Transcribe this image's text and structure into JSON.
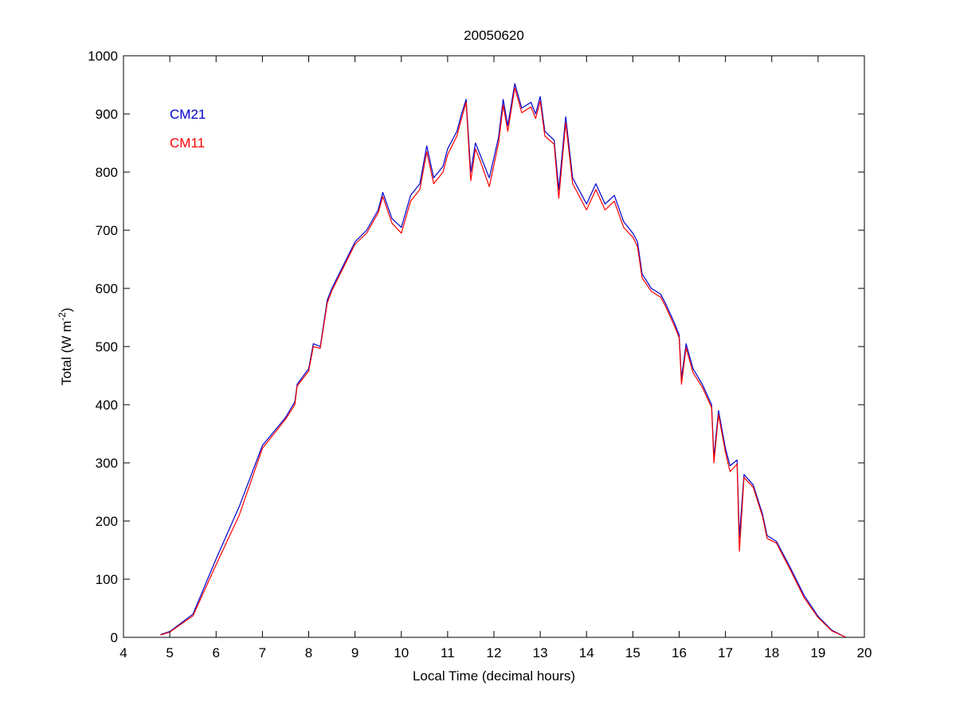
{
  "chart_data": {
    "type": "line",
    "title": "20050620",
    "xlabel": "Local Time (decimal hours)",
    "ylabel_main": "Total (W m",
    "ylabel_sup": "-2",
    "ylabel_end": ")",
    "xlim": [
      4,
      20
    ],
    "ylim": [
      0,
      1000
    ],
    "xticks": [
      "4",
      "5",
      "6",
      "7",
      "8",
      "9",
      "10",
      "11",
      "12",
      "13",
      "14",
      "15",
      "16",
      "17",
      "18",
      "19",
      "20"
    ],
    "yticks": [
      "0",
      "100",
      "200",
      "300",
      "400",
      "500",
      "600",
      "700",
      "800",
      "900",
      "1000"
    ],
    "grid": false,
    "legend_placement": "top-left",
    "series": [
      {
        "name": "CM21",
        "color": "#0000cc",
        "x": [
          4.8,
          5.0,
          5.5,
          6.0,
          6.5,
          7.0,
          7.5,
          7.7,
          7.75,
          8.0,
          8.1,
          8.25,
          8.4,
          8.5,
          8.75,
          9.0,
          9.25,
          9.5,
          9.6,
          9.8,
          10.0,
          10.2,
          10.4,
          10.55,
          10.7,
          10.9,
          11.0,
          11.2,
          11.3,
          11.4,
          11.5,
          11.6,
          11.7,
          11.9,
          12.1,
          12.2,
          12.3,
          12.45,
          12.6,
          12.8,
          12.9,
          13.0,
          13.1,
          13.3,
          13.4,
          13.55,
          13.7,
          13.9,
          14.0,
          14.2,
          14.4,
          14.6,
          14.8,
          15.0,
          15.1,
          15.2,
          15.4,
          15.6,
          15.7,
          15.9,
          16.0,
          16.05,
          16.15,
          16.3,
          16.5,
          16.7,
          16.75,
          16.85,
          17.0,
          17.1,
          17.25,
          17.3,
          17.4,
          17.6,
          17.8,
          17.9,
          18.1,
          18.4,
          18.7,
          19.0,
          19.3,
          19.6
        ],
        "y": [
          5,
          10,
          40,
          135,
          225,
          330,
          378,
          405,
          435,
          462,
          505,
          500,
          580,
          600,
          640,
          680,
          700,
          735,
          765,
          720,
          705,
          760,
          780,
          845,
          790,
          810,
          840,
          870,
          900,
          925,
          800,
          850,
          830,
          790,
          860,
          925,
          880,
          952,
          910,
          920,
          900,
          930,
          870,
          855,
          770,
          895,
          790,
          760,
          745,
          780,
          745,
          760,
          715,
          695,
          680,
          625,
          600,
          590,
          575,
          540,
          520,
          445,
          505,
          462,
          435,
          400,
          310,
          390,
          325,
          295,
          305,
          172,
          280,
          262,
          212,
          175,
          165,
          120,
          72,
          36,
          12,
          0
        ],
        "values_note": ""
      },
      {
        "name": "CM11",
        "color": "#ff0000",
        "x": [
          4.8,
          5.0,
          5.5,
          6.0,
          6.5,
          7.0,
          7.5,
          7.7,
          7.75,
          8.0,
          8.1,
          8.25,
          8.4,
          8.5,
          8.75,
          9.0,
          9.25,
          9.5,
          9.6,
          9.8,
          10.0,
          10.2,
          10.4,
          10.55,
          10.7,
          10.9,
          11.0,
          11.2,
          11.3,
          11.4,
          11.5,
          11.6,
          11.7,
          11.9,
          12.1,
          12.2,
          12.3,
          12.45,
          12.6,
          12.8,
          12.9,
          13.0,
          13.1,
          13.3,
          13.4,
          13.55,
          13.7,
          13.9,
          14.0,
          14.2,
          14.4,
          14.6,
          14.8,
          15.0,
          15.1,
          15.2,
          15.4,
          15.6,
          15.7,
          15.9,
          16.0,
          16.05,
          16.15,
          16.3,
          16.5,
          16.7,
          16.75,
          16.85,
          17.0,
          17.1,
          17.25,
          17.3,
          17.4,
          17.6,
          17.8,
          17.9,
          18.1,
          18.4,
          18.7,
          19.0,
          19.3,
          19.6
        ],
        "y": [
          4,
          9,
          37,
          125,
          210,
          325,
          375,
          400,
          432,
          458,
          500,
          497,
          575,
          596,
          636,
          676,
          695,
          730,
          758,
          712,
          695,
          750,
          770,
          835,
          780,
          800,
          830,
          862,
          892,
          920,
          785,
          840,
          820,
          775,
          850,
          915,
          870,
          945,
          902,
          912,
          892,
          922,
          862,
          848,
          755,
          885,
          780,
          750,
          735,
          770,
          735,
          750,
          705,
          688,
          672,
          618,
          595,
          585,
          570,
          535,
          515,
          435,
          498,
          455,
          430,
          395,
          300,
          383,
          318,
          285,
          298,
          148,
          275,
          258,
          208,
          170,
          162,
          116,
          68,
          34,
          11,
          0
        ]
      }
    ]
  }
}
